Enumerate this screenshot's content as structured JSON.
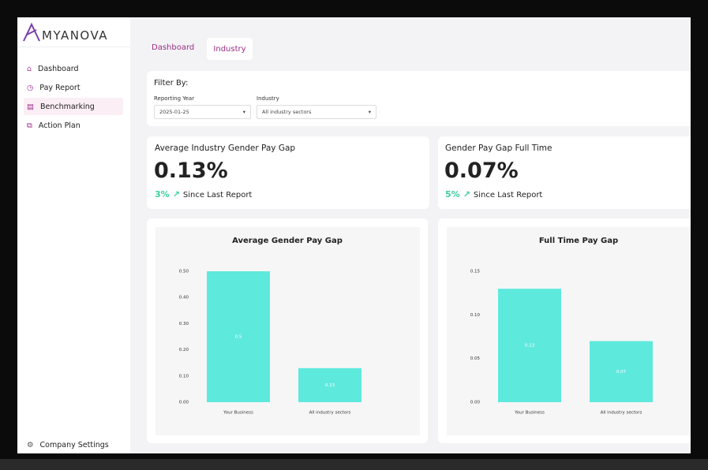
{
  "sidebar": {
    "logo": "MYANOVA",
    "nav": [
      "Dashboard",
      "Pay Report",
      "Benchmarking",
      "Action Plan"
    ],
    "settings": "Company Settings"
  },
  "tabs": [
    "Dashboard",
    "Industry"
  ],
  "filter": {
    "title": "Filter By:",
    "fields": [
      {
        "label": "Reporting Year",
        "value": "2025-01-25"
      },
      {
        "label": "Industry",
        "value": "All industry sectors"
      }
    ]
  },
  "kpis": [
    {
      "title": "Average Industry Gender Pay Gap",
      "value": "0.13%",
      "change": "3%",
      "note": "Since Last Report"
    },
    {
      "title": "Gender Pay Gap Full Time",
      "value": "0.07%",
      "change": "5%",
      "note": "Since Last Report"
    }
  ],
  "charts": [
    {
      "type": "bar",
      "title": "Average Gender Pay Gap",
      "categories": [
        "Your Business",
        "All industry sectors"
      ],
      "values": [
        0.5,
        0.13
      ],
      "color": "#5ee9dd",
      "ylim": [
        0,
        0.5
      ],
      "yticks": [
        {
          "value": 0,
          "label": "0.00"
        },
        {
          "value": 0.1,
          "label": "0.10"
        },
        {
          "value": 0.2,
          "label": "0.20"
        },
        {
          "value": 0.3,
          "label": "0.30"
        },
        {
          "value": 0.4,
          "label": "0.40"
        },
        {
          "value": 0.5,
          "label": "0.50"
        }
      ]
    },
    {
      "type": "bar",
      "title": "Full Time Pay Gap",
      "categories": [
        "Your Business",
        "All industry sectors"
      ],
      "values": [
        0.13,
        0.07
      ],
      "color": "#5ee9dd",
      "ylim": [
        0,
        0.15
      ],
      "yticks": [
        {
          "value": 0,
          "label": "0.00"
        },
        {
          "value": 0.05,
          "label": "0.05"
        },
        {
          "value": 0.1,
          "label": "0.10"
        },
        {
          "value": 0.15,
          "label": "0.15"
        }
      ]
    }
  ]
}
